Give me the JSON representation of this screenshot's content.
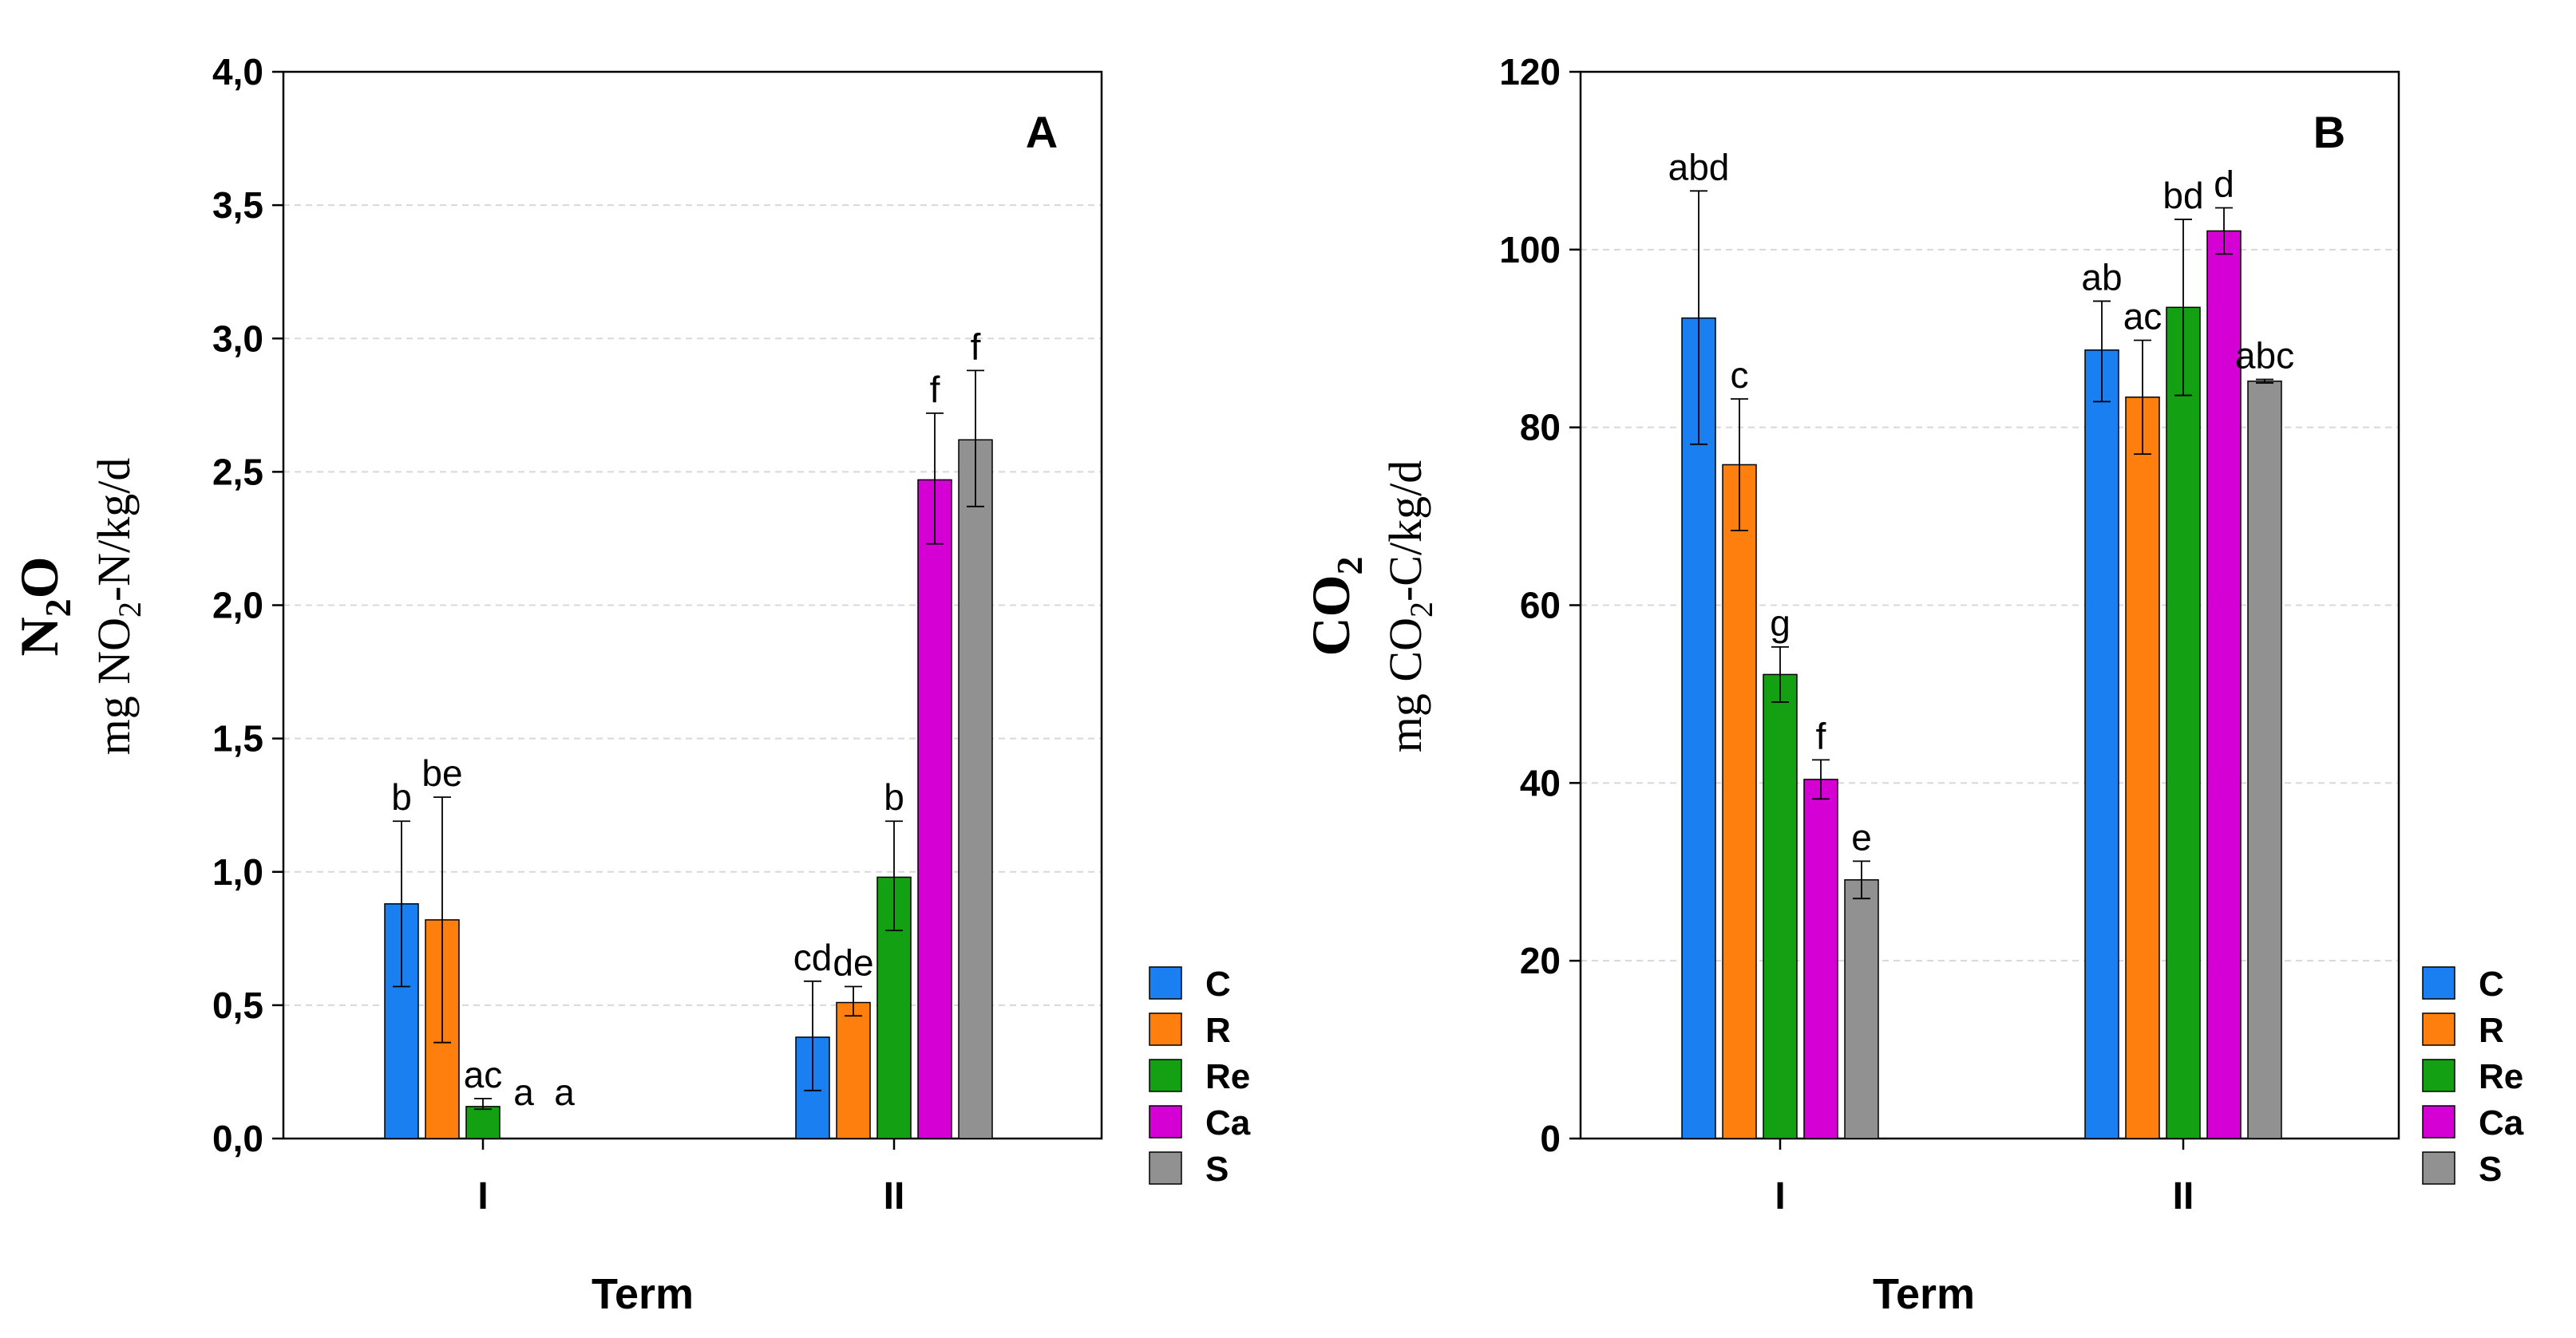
{
  "series_colors": {
    "C": "#1a7ff0",
    "R": "#ff7f0e",
    "Re": "#13a013",
    "Ca": "#d400d4",
    "S": "#919191"
  },
  "chart_data": [
    {
      "type": "bar",
      "panel_label": "A",
      "title": "",
      "xlabel": "Term",
      "ylabel_main": "N",
      "ylabel_main_sub": "2",
      "ylabel_main_tail": "O",
      "ylabel_unit_pre": "mg NO",
      "ylabel_unit_sub": "2",
      "ylabel_unit_post": "-N/kg/d",
      "ylim": [
        0,
        4
      ],
      "yticks": [
        0,
        0.5,
        1,
        1.5,
        2,
        2.5,
        3,
        3.5,
        4
      ],
      "ytick_labels": [
        "0,0",
        "0,5",
        "1,0",
        "1,5",
        "2,0",
        "2,5",
        "3,0",
        "3,5",
        "4,0"
      ],
      "categories": [
        "I",
        "II"
      ],
      "grid": true,
      "legend": "bottom-right",
      "series": [
        {
          "name": "C",
          "values": [
            0.88,
            0.38
          ],
          "err_low": [
            0.57,
            0.18
          ],
          "err_high": [
            1.19,
            0.59
          ],
          "letters": [
            "b",
            "cd"
          ]
        },
        {
          "name": "R",
          "values": [
            0.82,
            0.51
          ],
          "err_low": [
            0.36,
            0.46
          ],
          "err_high": [
            1.28,
            0.57
          ],
          "letters": [
            "be",
            "de"
          ]
        },
        {
          "name": "Re",
          "values": [
            0.12,
            0.98
          ],
          "err_low": [
            0.11,
            0.78
          ],
          "err_high": [
            0.15,
            1.19
          ],
          "letters": [
            "ac",
            "b"
          ]
        },
        {
          "name": "Ca",
          "values": [
            0.0,
            2.47
          ],
          "err_low": [
            0.0,
            2.23
          ],
          "err_high": [
            0.0,
            2.72
          ],
          "letters": [
            "a",
            "f"
          ]
        },
        {
          "name": "S",
          "values": [
            0.0,
            2.62
          ],
          "err_low": [
            0.0,
            2.37
          ],
          "err_high": [
            0.0,
            2.88
          ],
          "letters": [
            "a",
            "f"
          ]
        }
      ]
    },
    {
      "type": "bar",
      "panel_label": "B",
      "title": "",
      "xlabel": "Term",
      "ylabel_main": "CO",
      "ylabel_main_sub": "2",
      "ylabel_main_tail": "",
      "ylabel_unit_pre": "mg CO",
      "ylabel_unit_sub": "2",
      "ylabel_unit_post": "-C/kg/d",
      "ylim": [
        0,
        120
      ],
      "yticks": [
        0,
        20,
        40,
        60,
        80,
        100,
        120
      ],
      "ytick_labels": [
        "0",
        "20",
        "40",
        "60",
        "80",
        "100",
        "120"
      ],
      "categories": [
        "I",
        "II"
      ],
      "grid": true,
      "legend": "bottom-right",
      "series": [
        {
          "name": "C",
          "values": [
            92.3,
            88.7
          ],
          "err_low": [
            78.1,
            82.9
          ],
          "err_high": [
            106.6,
            94.2
          ],
          "letters": [
            "abd",
            "ab"
          ]
        },
        {
          "name": "R",
          "values": [
            75.8,
            83.4
          ],
          "err_low": [
            68.4,
            77.0
          ],
          "err_high": [
            83.2,
            89.8
          ],
          "letters": [
            "c",
            "ac"
          ]
        },
        {
          "name": "Re",
          "values": [
            52.2,
            93.5
          ],
          "err_low": [
            49.1,
            83.6
          ],
          "err_high": [
            55.3,
            103.4
          ],
          "letters": [
            "g",
            "bd"
          ]
        },
        {
          "name": "Ca",
          "values": [
            40.4,
            102.1
          ],
          "err_low": [
            38.2,
            99.5
          ],
          "err_high": [
            42.6,
            104.7
          ],
          "letters": [
            "f",
            "d"
          ]
        },
        {
          "name": "S",
          "values": [
            29.1,
            85.2
          ],
          "err_low": [
            27.0,
            85.0
          ],
          "err_high": [
            31.2,
            85.4
          ],
          "letters": [
            "e",
            "abc"
          ]
        }
      ]
    }
  ]
}
